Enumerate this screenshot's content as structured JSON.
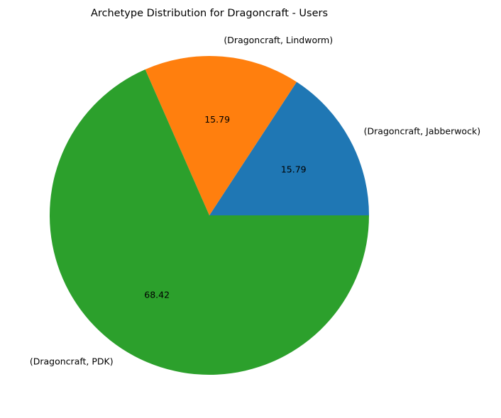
{
  "chart_data": {
    "type": "pie",
    "title": "Archetype Distribution for Dragoncraft - Users",
    "categories": [
      "(Dragoncraft, Jabberwock)",
      "(Dragoncraft, Lindworm)",
      "(Dragoncraft, PDK)"
    ],
    "values": [
      15.79,
      15.79,
      68.42
    ],
    "value_labels": [
      "15.79",
      "15.79",
      "68.42"
    ],
    "colors": [
      "#1f77b4",
      "#ff7f0e",
      "#2ca02c"
    ],
    "start_angle_deg": 0,
    "direction": "counterclockwise",
    "legend": "none"
  }
}
